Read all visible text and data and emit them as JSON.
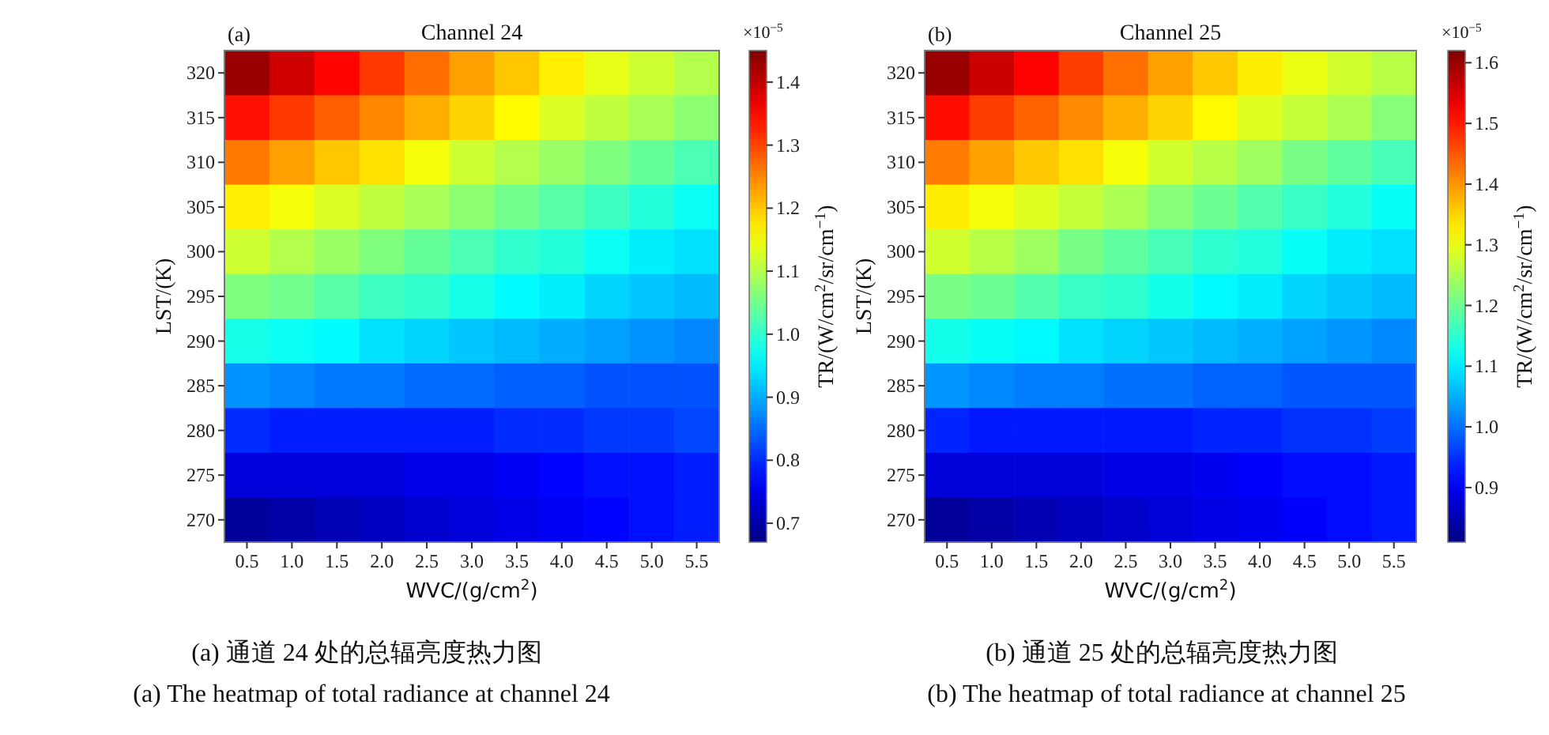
{
  "chart_data": [
    {
      "type": "heatmap",
      "title": "Channel 24",
      "xlabel": "WVC/(g/cm$^{2}$)",
      "ylabel": "LST/(K)",
      "clabel": "TR/(W/cm$^{2}$/sr/cm$^{−1}$)",
      "annotations": [
        "(a)",
        "×10$^{−5}$",
        "(a)  通道 24 处的总辐亮度热力图",
        "(a) The heatmap of total radiance at channel 24"
      ],
      "categories": [
        "0.5",
        "1.0",
        "1.5",
        "2.0",
        "2.5",
        "3.0",
        "3.5",
        "4.0",
        "4.5",
        "5.0",
        "5.5"
      ],
      "y_categories": [
        "320",
        "315",
        "310",
        "305",
        "300",
        "295",
        "290",
        "285",
        "280",
        "275",
        "270"
      ],
      "cells": [
        [
          1.43,
          1.39,
          1.35,
          1.31,
          1.27,
          1.23,
          1.2,
          1.17,
          1.14,
          1.12,
          1.1
        ],
        [
          1.34,
          1.31,
          1.28,
          1.25,
          1.22,
          1.19,
          1.16,
          1.13,
          1.11,
          1.09,
          1.07
        ],
        [
          1.26,
          1.23,
          1.2,
          1.18,
          1.15,
          1.12,
          1.1,
          1.08,
          1.06,
          1.04,
          1.02
        ],
        [
          1.17,
          1.15,
          1.13,
          1.11,
          1.09,
          1.07,
          1.05,
          1.03,
          1.01,
          0.99,
          0.97
        ],
        [
          1.12,
          1.1,
          1.08,
          1.06,
          1.04,
          1.02,
          1.0,
          0.99,
          0.97,
          0.95,
          0.94
        ],
        [
          1.06,
          1.05,
          1.03,
          1.01,
          1.0,
          0.98,
          0.96,
          0.95,
          0.93,
          0.92,
          0.91
        ],
        [
          0.98,
          0.97,
          0.96,
          0.94,
          0.93,
          0.92,
          0.91,
          0.9,
          0.89,
          0.88,
          0.87
        ],
        [
          0.88,
          0.87,
          0.86,
          0.86,
          0.85,
          0.85,
          0.84,
          0.84,
          0.83,
          0.83,
          0.83
        ],
        [
          0.8,
          0.79,
          0.79,
          0.79,
          0.79,
          0.79,
          0.8,
          0.8,
          0.81,
          0.81,
          0.82
        ],
        [
          0.74,
          0.74,
          0.74,
          0.74,
          0.75,
          0.75,
          0.76,
          0.77,
          0.78,
          0.78,
          0.79
        ],
        [
          0.69,
          0.7,
          0.71,
          0.72,
          0.73,
          0.74,
          0.75,
          0.76,
          0.77,
          0.78,
          0.79
        ]
      ],
      "clim": [
        0.67,
        1.45
      ],
      "cticks": [
        0.7,
        0.8,
        0.9,
        {
          "value": 1.0,
          "label": "1.0"
        },
        1.1,
        1.2,
        1.3,
        1.4
      ]
    },
    {
      "type": "heatmap",
      "title": "Channel 25",
      "xlabel": "WVC/(g/cm$^{2}$)",
      "ylabel": "LST/(K)",
      "clabel": "TR/(W/cm$^{2}$/sr/cm$^{−1}$)",
      "annotations": [
        "(b)",
        "×10$^{−5}$",
        "(b)  通道 25 处的总辐亮度热力图",
        "(b) The heatmap of total radiance at channel 25"
      ],
      "categories": [
        "0.5",
        "1.0",
        "1.5",
        "2.0",
        "2.5",
        "3.0",
        "3.5",
        "4.0",
        "4.5",
        "5.0",
        "5.5"
      ],
      "y_categories": [
        "320",
        "315",
        "310",
        "305",
        "300",
        "295",
        "290",
        "285",
        "280",
        "275",
        "270"
      ],
      "cells": [
        [
          1.6,
          1.56,
          1.52,
          1.47,
          1.43,
          1.39,
          1.36,
          1.33,
          1.3,
          1.28,
          1.26
        ],
        [
          1.51,
          1.47,
          1.44,
          1.41,
          1.38,
          1.35,
          1.32,
          1.29,
          1.27,
          1.25,
          1.22
        ],
        [
          1.42,
          1.39,
          1.36,
          1.34,
          1.31,
          1.28,
          1.26,
          1.24,
          1.21,
          1.19,
          1.17
        ],
        [
          1.33,
          1.31,
          1.29,
          1.27,
          1.25,
          1.22,
          1.2,
          1.18,
          1.16,
          1.14,
          1.12
        ],
        [
          1.28,
          1.26,
          1.24,
          1.21,
          1.19,
          1.17,
          1.15,
          1.14,
          1.12,
          1.1,
          1.09
        ],
        [
          1.21,
          1.2,
          1.18,
          1.16,
          1.15,
          1.13,
          1.11,
          1.1,
          1.08,
          1.07,
          1.06
        ],
        [
          1.13,
          1.12,
          1.11,
          1.09,
          1.08,
          1.07,
          1.06,
          1.05,
          1.04,
          1.03,
          1.02
        ],
        [
          1.03,
          1.02,
          1.01,
          1.01,
          1.0,
          1.0,
          0.99,
          0.99,
          0.98,
          0.98,
          0.98
        ],
        [
          0.94,
          0.93,
          0.93,
          0.93,
          0.93,
          0.93,
          0.94,
          0.94,
          0.95,
          0.95,
          0.96
        ],
        [
          0.88,
          0.88,
          0.88,
          0.88,
          0.89,
          0.89,
          0.9,
          0.91,
          0.92,
          0.92,
          0.93
        ],
        [
          0.83,
          0.84,
          0.85,
          0.86,
          0.87,
          0.88,
          0.89,
          0.9,
          0.91,
          0.92,
          0.93
        ]
      ],
      "clim": [
        0.81,
        1.62
      ],
      "cticks": [
        0.9,
        {
          "value": 1.0,
          "label": "1.0"
        },
        1.1,
        1.2,
        1.3,
        1.4,
        1.5,
        1.6
      ]
    }
  ]
}
